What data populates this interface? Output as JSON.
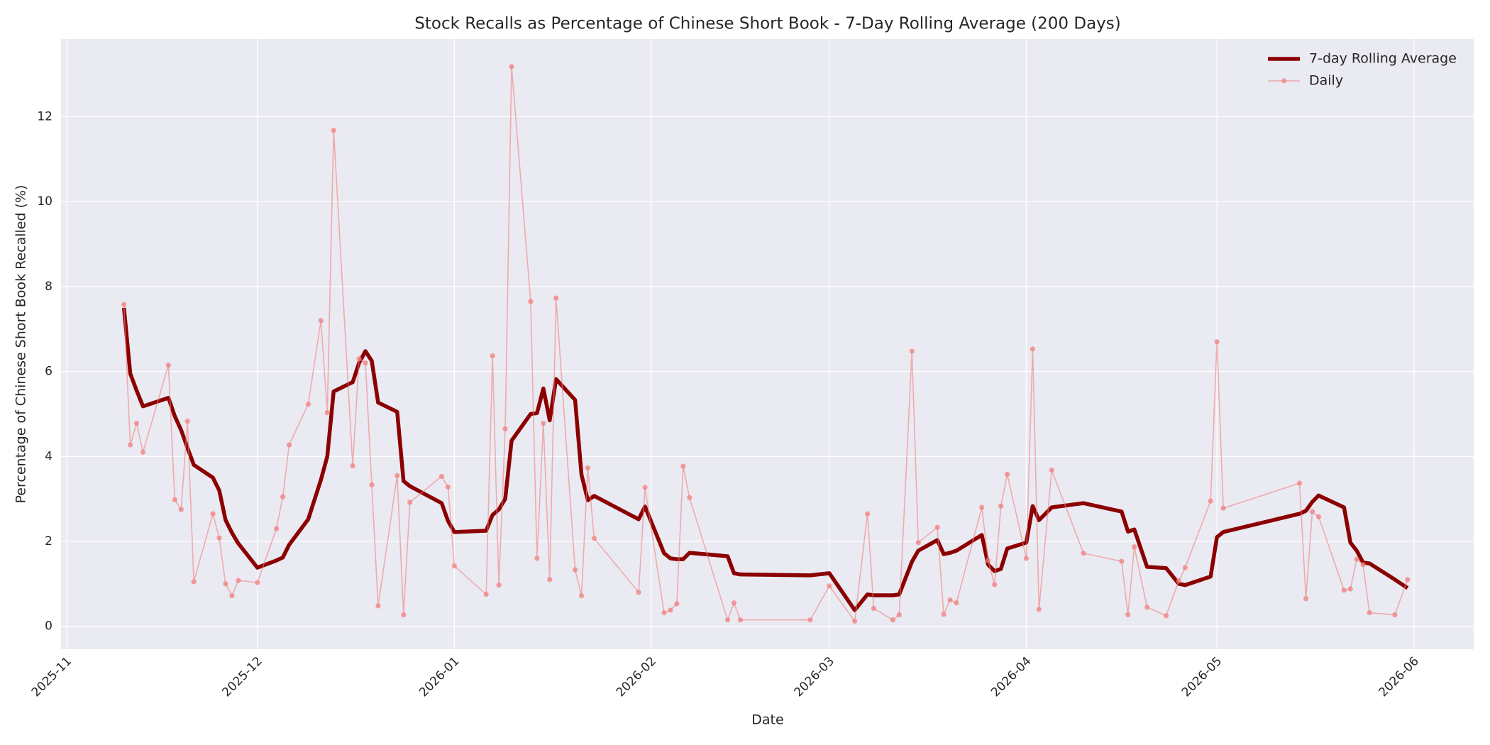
{
  "chart_data": {
    "type": "line",
    "title": "Stock Recalls as Percentage of Chinese Short Book - 7-Day Rolling Average (200 Days)",
    "x_label": "Date",
    "y_label": "Percentage of Chinese Short Book Recalled (%)",
    "x": [
      20402,
      20403,
      20404,
      20405,
      20409,
      20410,
      20411,
      20412,
      20413,
      20416,
      20417,
      20418,
      20419,
      20420,
      20423,
      20426,
      20427,
      20428,
      20431,
      20433,
      20434,
      20435,
      20438,
      20439,
      20440,
      20441,
      20442,
      20445,
      20446,
      20447,
      20452,
      20453,
      20454,
      20459,
      20460,
      20461,
      20462,
      20463,
      20466,
      20467,
      20468,
      20469,
      20470,
      20473,
      20474,
      20475,
      20476,
      20483,
      20484,
      20487,
      20488,
      20489,
      20490,
      20491,
      20497,
      20498,
      20499,
      20510,
      20513,
      20517,
      20519,
      20520,
      20523,
      20524,
      20526,
      20527,
      20530,
      20531,
      20532,
      20533,
      20537,
      20538,
      20539,
      20540,
      20541,
      20544,
      20545,
      20546,
      20548,
      20553,
      20559,
      20560,
      20561,
      20563,
      20566,
      20568,
      20569,
      20573,
      20574,
      20575,
      20587,
      20588,
      20589,
      20590,
      20594,
      20595,
      20596,
      20597,
      20598,
      20602,
      20604
    ],
    "series": [
      {
        "name": "7-day Rolling Average",
        "color": "#8b0000",
        "values": [
          7.5,
          5.95,
          5.55,
          5.18,
          5.38,
          4.95,
          4.62,
          4.2,
          3.8,
          3.5,
          3.2,
          2.5,
          2.2,
          1.95,
          1.38,
          1.55,
          1.62,
          1.92,
          2.52,
          3.45,
          4.0,
          5.53,
          5.75,
          6.2,
          6.48,
          6.25,
          5.27,
          5.05,
          3.42,
          3.3,
          2.9,
          2.48,
          2.22,
          2.25,
          2.62,
          2.75,
          3.0,
          4.37,
          5.0,
          5.02,
          5.6,
          4.85,
          5.82,
          5.33,
          3.57,
          2.97,
          3.07,
          2.52,
          2.82,
          1.72,
          1.6,
          1.58,
          1.58,
          1.73,
          1.65,
          1.25,
          1.22,
          1.2,
          1.25,
          0.38,
          0.75,
          0.73,
          0.73,
          0.75,
          1.52,
          1.78,
          2.03,
          1.7,
          1.73,
          1.78,
          2.15,
          1.45,
          1.3,
          1.35,
          1.83,
          1.97,
          2.83,
          2.5,
          2.8,
          2.9,
          2.7,
          2.23,
          2.28,
          1.4,
          1.37,
          1.0,
          0.97,
          1.17,
          2.1,
          2.22,
          2.65,
          2.72,
          2.93,
          3.08,
          2.8,
          1.97,
          1.78,
          1.5,
          1.48,
          1.1,
          0.9
        ]
      },
      {
        "name": "Daily",
        "color": "#f08080",
        "values": [
          7.58,
          4.27,
          4.78,
          4.1,
          6.15,
          2.98,
          2.75,
          4.83,
          1.05,
          2.65,
          2.08,
          1.0,
          0.72,
          1.08,
          1.03,
          2.3,
          3.05,
          4.27,
          5.23,
          7.2,
          5.03,
          11.68,
          3.78,
          6.3,
          6.2,
          3.33,
          0.48,
          3.55,
          0.27,
          2.92,
          3.53,
          3.28,
          1.42,
          0.75,
          6.37,
          0.97,
          4.65,
          13.18,
          7.65,
          1.6,
          4.78,
          1.1,
          7.73,
          1.33,
          0.72,
          3.73,
          2.07,
          0.8,
          3.27,
          0.32,
          0.38,
          0.53,
          3.77,
          3.03,
          0.15,
          0.55,
          0.15,
          0.15,
          0.95,
          0.12,
          2.65,
          0.42,
          0.15,
          0.27,
          6.48,
          1.97,
          2.33,
          0.28,
          0.62,
          0.55,
          2.8,
          1.55,
          0.98,
          2.83,
          3.58,
          1.6,
          6.53,
          0.4,
          3.68,
          1.72,
          1.53,
          0.27,
          1.87,
          0.45,
          0.25,
          1.07,
          1.38,
          2.95,
          6.7,
          2.78,
          3.37,
          0.65,
          2.7,
          2.58,
          0.85,
          0.88,
          1.58,
          1.45,
          0.32,
          0.27,
          1.1
        ]
      }
    ],
    "xlim": [
      20392.1,
      20614.4
    ],
    "xticks": [
      {
        "value": 20393,
        "label": "2025-11"
      },
      {
        "value": 20423,
        "label": "2025-12"
      },
      {
        "value": 20454,
        "label": "2026-01"
      },
      {
        "value": 20485,
        "label": "2026-02"
      },
      {
        "value": 20513,
        "label": "2026-03"
      },
      {
        "value": 20544,
        "label": "2026-04"
      },
      {
        "value": 20574,
        "label": "2026-05"
      },
      {
        "value": 20605,
        "label": "2026-06"
      }
    ],
    "ylim": [
      -0.54,
      13.83
    ],
    "yticks": [
      0,
      2,
      4,
      6,
      8,
      10,
      12
    ],
    "grid": true,
    "legend": "upper right"
  }
}
